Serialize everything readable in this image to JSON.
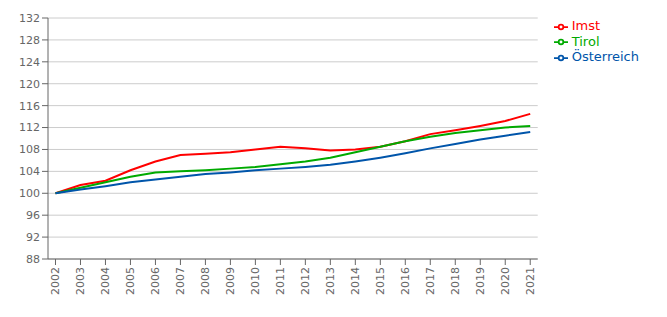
{
  "chart_data": {
    "type": "line",
    "x": [
      2002,
      2003,
      2004,
      2005,
      2006,
      2007,
      2008,
      2009,
      2010,
      2011,
      2012,
      2013,
      2014,
      2015,
      2016,
      2017,
      2018,
      2019,
      2020,
      2021
    ],
    "series": [
      {
        "name": "Imst",
        "color": "#ff0000",
        "values": [
          100.0,
          101.5,
          102.3,
          104.2,
          105.8,
          107.0,
          107.2,
          107.5,
          108.0,
          108.5,
          108.2,
          107.8,
          108.0,
          108.5,
          109.5,
          110.8,
          111.5,
          112.3,
          113.2,
          114.5
        ]
      },
      {
        "name": "Tirol",
        "color": "#00aa00",
        "values": [
          100.0,
          101.0,
          102.0,
          103.0,
          103.8,
          104.0,
          104.2,
          104.5,
          104.8,
          105.3,
          105.8,
          106.5,
          107.5,
          108.5,
          109.5,
          110.3,
          111.0,
          111.5,
          112.0,
          112.3
        ]
      },
      {
        "name": "Österreich",
        "color": "#0055aa",
        "values": [
          100.0,
          100.7,
          101.3,
          102.0,
          102.5,
          103.0,
          103.5,
          103.8,
          104.2,
          104.5,
          104.8,
          105.2,
          105.8,
          106.5,
          107.3,
          108.2,
          109.0,
          109.8,
          110.5,
          111.2
        ]
      }
    ],
    "xlim": [
      2001.7,
      2021.3
    ],
    "xticks": [
      2002,
      2003,
      2004,
      2005,
      2006,
      2007,
      2008,
      2009,
      2010,
      2011,
      2012,
      2013,
      2014,
      2015,
      2016,
      2017,
      2018,
      2019,
      2020,
      2021
    ],
    "ylim": [
      88,
      132
    ],
    "yticks": [
      88,
      92,
      96,
      100,
      104,
      108,
      112,
      116,
      120,
      124,
      128,
      132
    ],
    "grid": true,
    "legend": "upper right"
  }
}
